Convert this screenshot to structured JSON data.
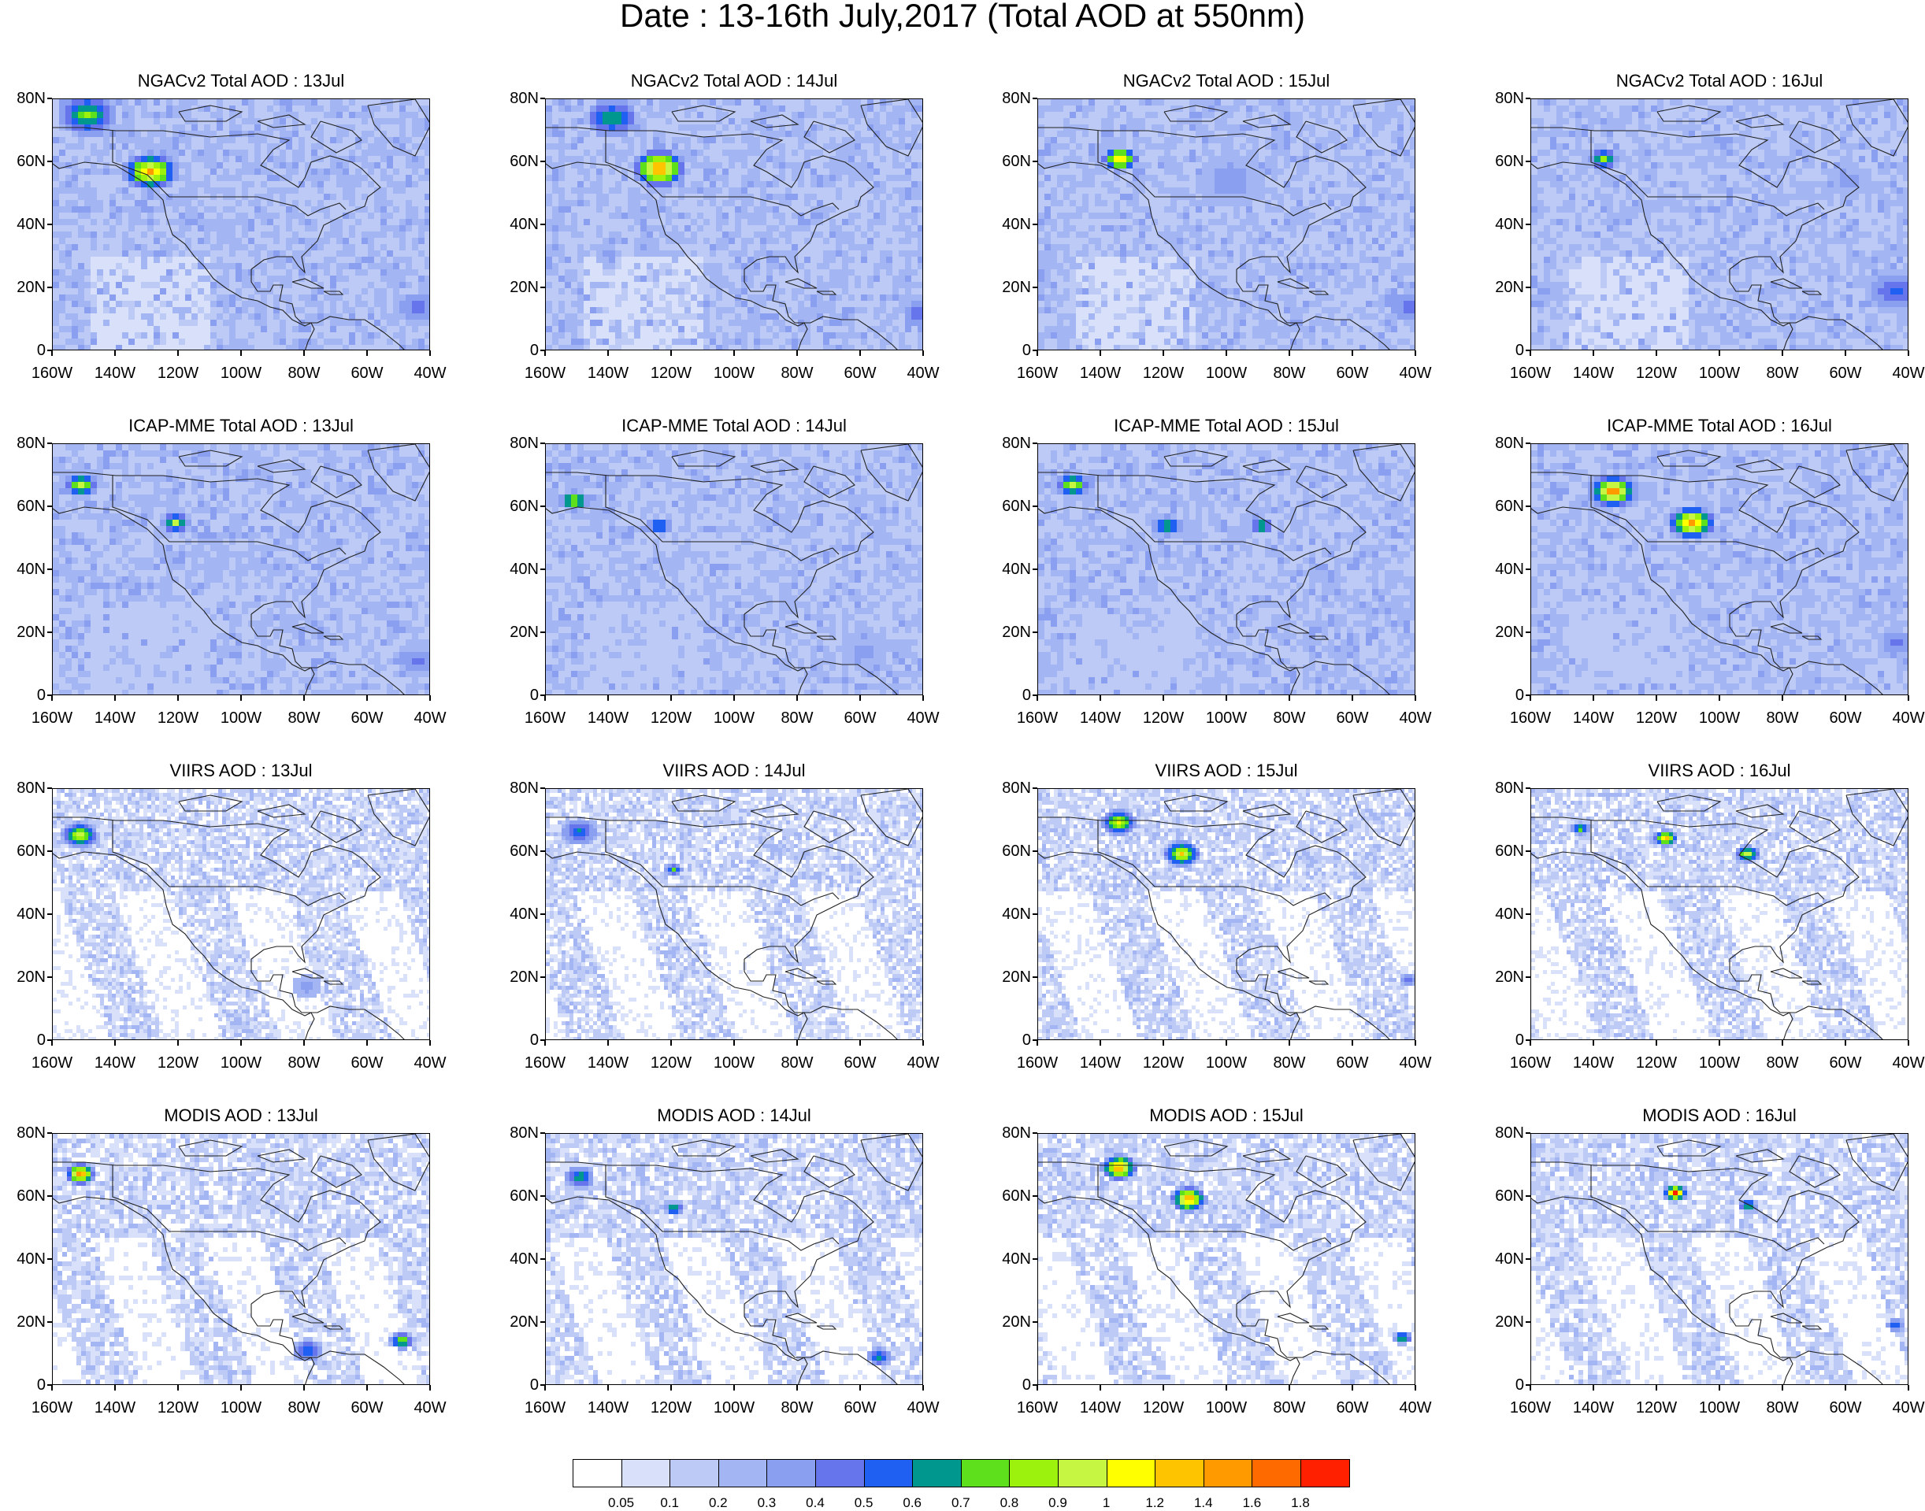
{
  "title": "Date : 13-16th July,2017 (Total AOD at 550nm)",
  "panel_titles": [
    [
      "NGACv2 Total AOD : 13Jul",
      "NGACv2 Total AOD : 14Jul",
      "NGACv2 Total AOD : 15Jul",
      "NGACv2 Total AOD : 16Jul"
    ],
    [
      "ICAP-MME Total AOD : 13Jul",
      "ICAP-MME Total AOD : 14Jul",
      "ICAP-MME Total AOD : 15Jul",
      "ICAP-MME Total AOD : 16Jul"
    ],
    [
      "VIIRS AOD : 13Jul",
      "VIIRS AOD : 14Jul",
      "VIIRS AOD : 15Jul",
      "VIIRS AOD : 16Jul"
    ],
    [
      "MODIS AOD : 13Jul",
      "MODIS AOD : 14Jul",
      "MODIS AOD : 15Jul",
      "MODIS AOD : 16Jul"
    ]
  ],
  "x_tick_labels": [
    "160W",
    "140W",
    "120W",
    "100W",
    "80W",
    "60W",
    "40W"
  ],
  "y_tick_labels": [
    "0",
    "20N",
    "40N",
    "60N",
    "80N"
  ],
  "colorbar": {
    "labels": [
      "0.05",
      "0.1",
      "0.2",
      "0.3",
      "0.4",
      "0.5",
      "0.6",
      "0.7",
      "0.8",
      "0.9",
      "1",
      "1.2",
      "1.4",
      "1.6",
      "1.8"
    ],
    "colors": [
      "#ffffff",
      "#d8e0fa",
      "#bccaf5",
      "#a3b5f2",
      "#8a9ff0",
      "#6775ec",
      "#1f60f2",
      "#00978f",
      "#5ee01c",
      "#9cf20d",
      "#c6f542",
      "#ffff00",
      "#ffc400",
      "#ff9a00",
      "#ff6a00",
      "#ff2000"
    ]
  }
}
